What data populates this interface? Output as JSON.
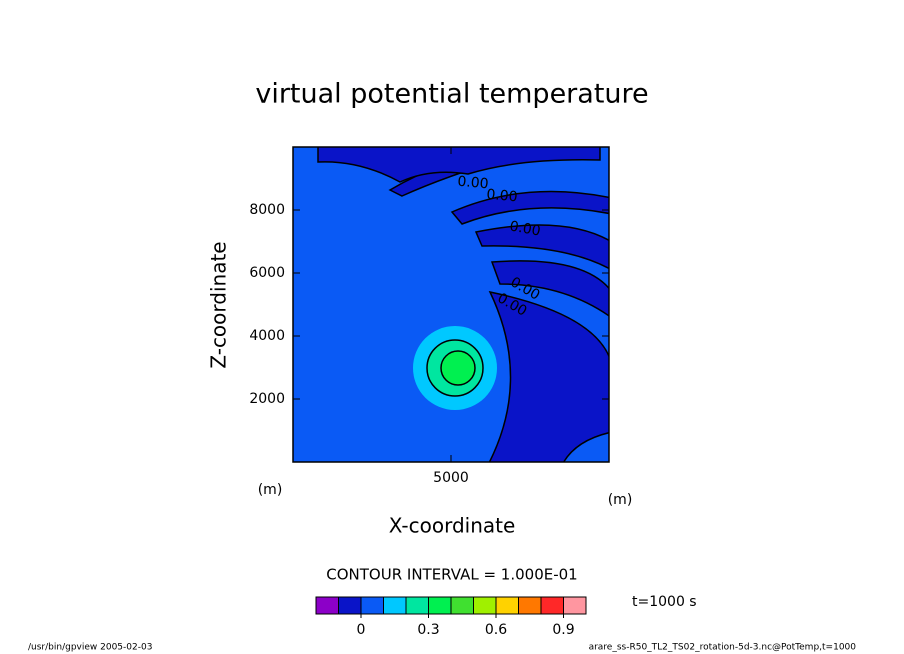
{
  "chart_data": {
    "type": "contour",
    "title": "virtual potential temperature",
    "xlabel": "X-coordinate",
    "ylabel": "Z-coordinate",
    "xunit": "(m)",
    "yunit": "(m)",
    "xlim": [
      0,
      10000
    ],
    "ylim": [
      0,
      10000
    ],
    "xticks": [
      5000
    ],
    "yticks": [
      2000,
      4000,
      6000,
      8000
    ],
    "contour_labels": [
      "0.00",
      "0.00",
      "0.00",
      "0.00",
      "0.00"
    ],
    "contour_interval": "CONTOUR INTERVAL = 1.000E-01",
    "time": "t=1000 s",
    "colorbar": {
      "levels": [
        -0.2,
        -0.1,
        0,
        0.1,
        0.2,
        0.3,
        0.4,
        0.5,
        0.6,
        0.7,
        0.8,
        0.9,
        1.0
      ],
      "colors": [
        "#8c00c8",
        "#0a14c8",
        "#0a5af5",
        "#00c8ff",
        "#00e6a0",
        "#00f050",
        "#40e030",
        "#a0f000",
        "#ffd200",
        "#ff7800",
        "#ff2828",
        "#ff96a0"
      ],
      "ticks": [
        0,
        0.3,
        0.6,
        0.9
      ]
    },
    "footer_left": "/usr/bin/gpview  2005-02-03",
    "footer_right": "arare_ss-R50_TL2_TS02_rotation-5d-3.nc@PotTemp,t=1000"
  }
}
